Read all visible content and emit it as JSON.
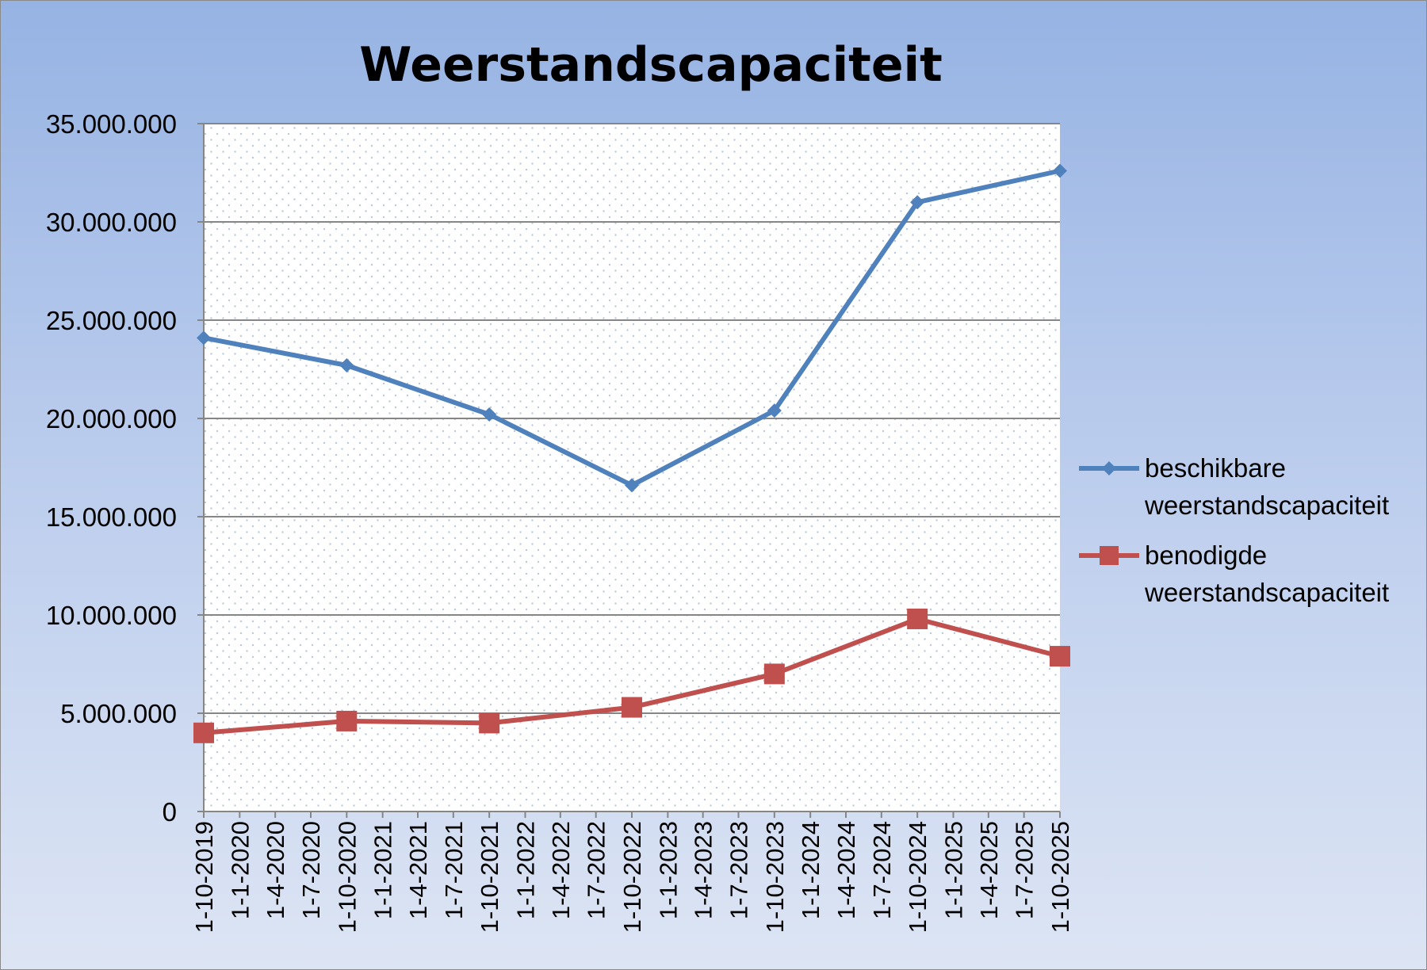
{
  "chart_data": {
    "type": "line",
    "title": "Weerstandscapaciteit",
    "xlabel": "",
    "ylabel": "",
    "ylim": [
      0,
      35000000
    ],
    "yticks": [
      0,
      5000000,
      10000000,
      15000000,
      20000000,
      25000000,
      30000000,
      35000000
    ],
    "ytick_labels": [
      "0",
      "5.000.000",
      "10.000.000",
      "15.000.000",
      "20.000.000",
      "25.000.000",
      "30.000.000",
      "35.000.000"
    ],
    "xlim": [
      "2019-10-01",
      "2025-10-01"
    ],
    "xtick_labels": [
      "1-10-2019",
      "1-1-2020",
      "1-4-2020",
      "1-7-2020",
      "1-10-2020",
      "1-1-2021",
      "1-4-2021",
      "1-7-2021",
      "1-10-2021",
      "1-1-2022",
      "1-4-2022",
      "1-7-2022",
      "1-10-2022",
      "1-1-2023",
      "1-4-2023",
      "1-7-2023",
      "1-10-2023",
      "1-1-2024",
      "1-4-2024",
      "1-7-2024",
      "1-10-2024",
      "1-1-2025",
      "1-4-2025",
      "1-7-2025",
      "1-10-2025"
    ],
    "x": [
      "2019-10-01",
      "2020-10-01",
      "2021-10-01",
      "2022-10-01",
      "2023-10-01",
      "2024-10-01",
      "2025-10-01"
    ],
    "grid": true,
    "legend_position": "right",
    "series": [
      {
        "name": "beschikbare weerstandscapaciteit",
        "legend_lines": [
          "beschikbare",
          "weerstandscapaciteit"
        ],
        "color": "#4f81bd",
        "marker": "diamond",
        "values": [
          24100000,
          22700000,
          20200000,
          16600000,
          20400000,
          31000000,
          32600000
        ]
      },
      {
        "name": "benodigde weerstandscapaciteit",
        "legend_lines": [
          "benodigde",
          "weerstandscapaciteit"
        ],
        "color": "#c0504d",
        "marker": "square",
        "values": [
          4000000,
          4600000,
          4500000,
          5300000,
          7000000,
          9800000,
          7900000
        ]
      }
    ]
  }
}
